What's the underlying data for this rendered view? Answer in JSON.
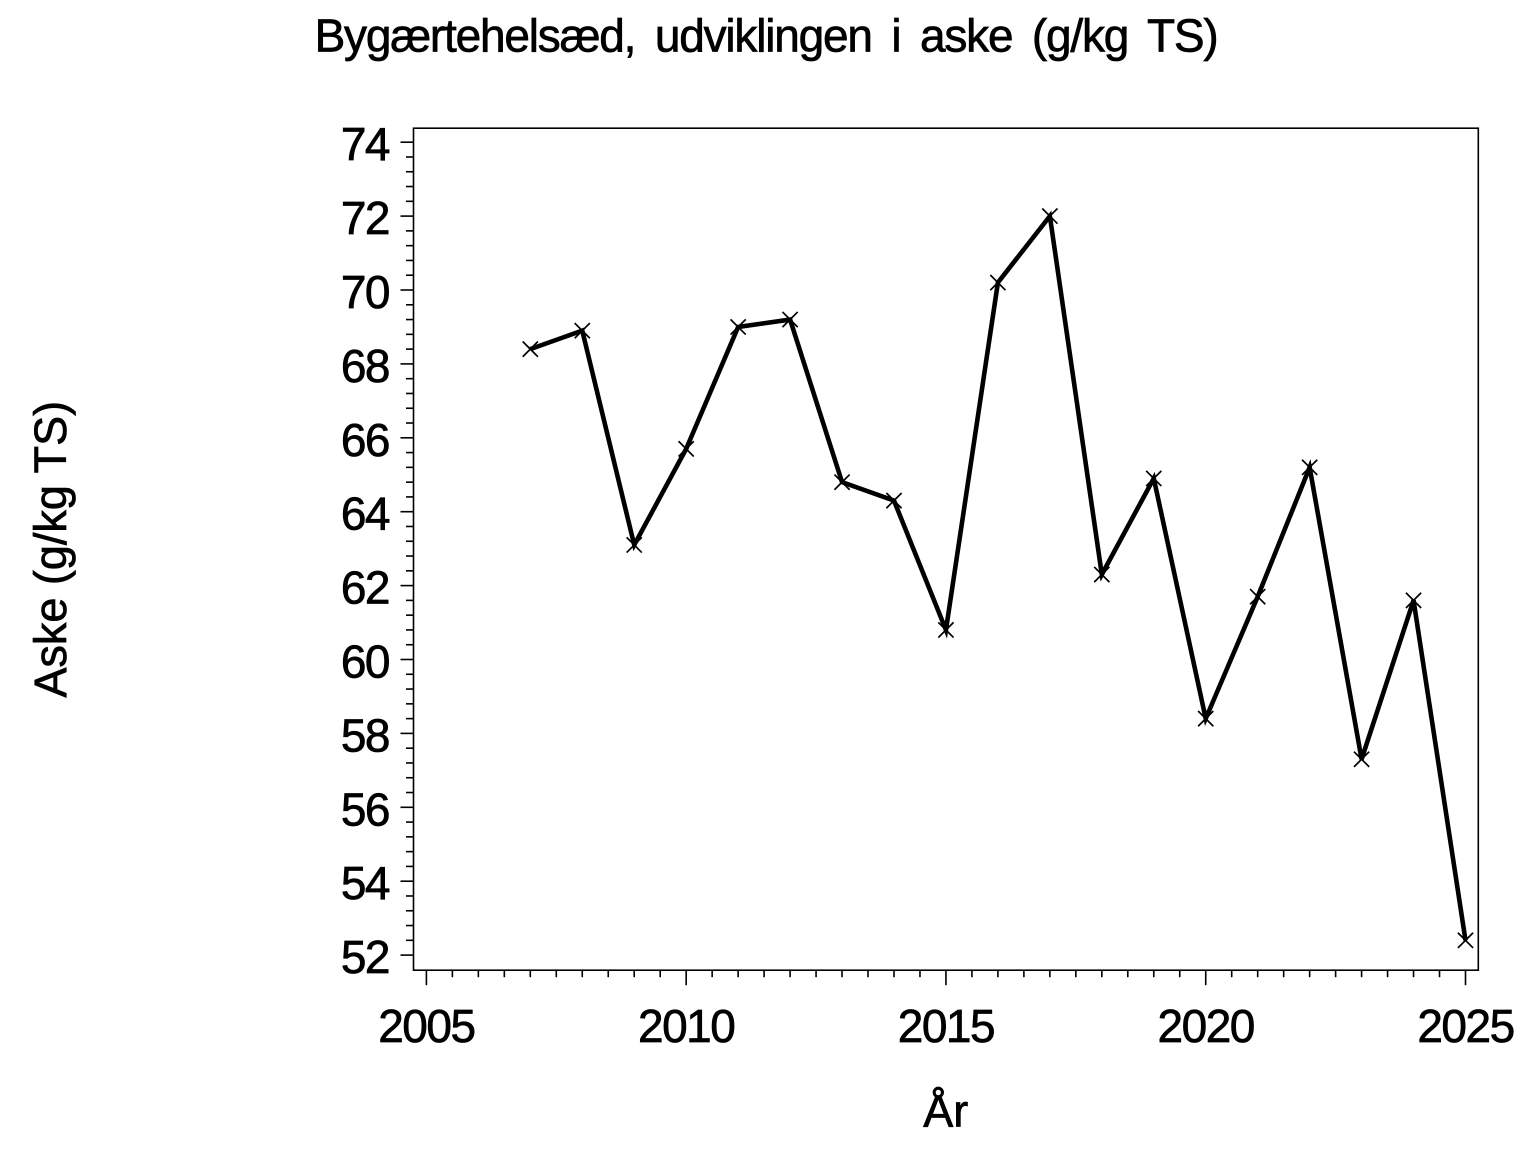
{
  "page": {
    "background_color": "#ffffff",
    "foreground_color": "#000000"
  },
  "chart_data": {
    "type": "line",
    "title": "Bygærtehelsæd, udviklingen i aske (g/kg TS)",
    "xlabel": "År",
    "ylabel": "Aske (g/kg TS)",
    "series": [
      {
        "name": "Aske (g/kg TS)",
        "x": [
          2007,
          2008,
          2009,
          2010,
          2011,
          2012,
          2013,
          2014,
          2015,
          2016,
          2017,
          2018,
          2019,
          2020,
          2021,
          2022,
          2023,
          2024,
          2025
        ],
        "values": [
          68.4,
          68.9,
          63.1,
          65.7,
          69.0,
          69.2,
          64.8,
          64.3,
          60.8,
          70.2,
          72.0,
          62.3,
          64.9,
          58.4,
          61.7,
          65.2,
          57.3,
          61.6,
          52.4
        ],
        "marker": "x-cross",
        "line_color": "#000000"
      }
    ],
    "xlim": [
      2004.74,
      2025.25
    ],
    "ylim": [
      51.6,
      74.4
    ],
    "x_major_ticks": [
      2005,
      2010,
      2015,
      2020,
      2025
    ],
    "x_tick_labels": [
      "2005",
      "2010",
      "2015",
      "2020",
      "2025"
    ],
    "x_minor_tick_step": 0.5,
    "y_major_ticks": [
      52,
      54,
      56,
      58,
      60,
      62,
      64,
      66,
      68,
      70,
      72,
      74
    ],
    "y_tick_labels": [
      "52",
      "54",
      "56",
      "58",
      "60",
      "62",
      "64",
      "66",
      "68",
      "70",
      "72",
      "74"
    ],
    "y_minor_tick_step": 0.4,
    "grid": false,
    "legend": false,
    "frame": true
  }
}
